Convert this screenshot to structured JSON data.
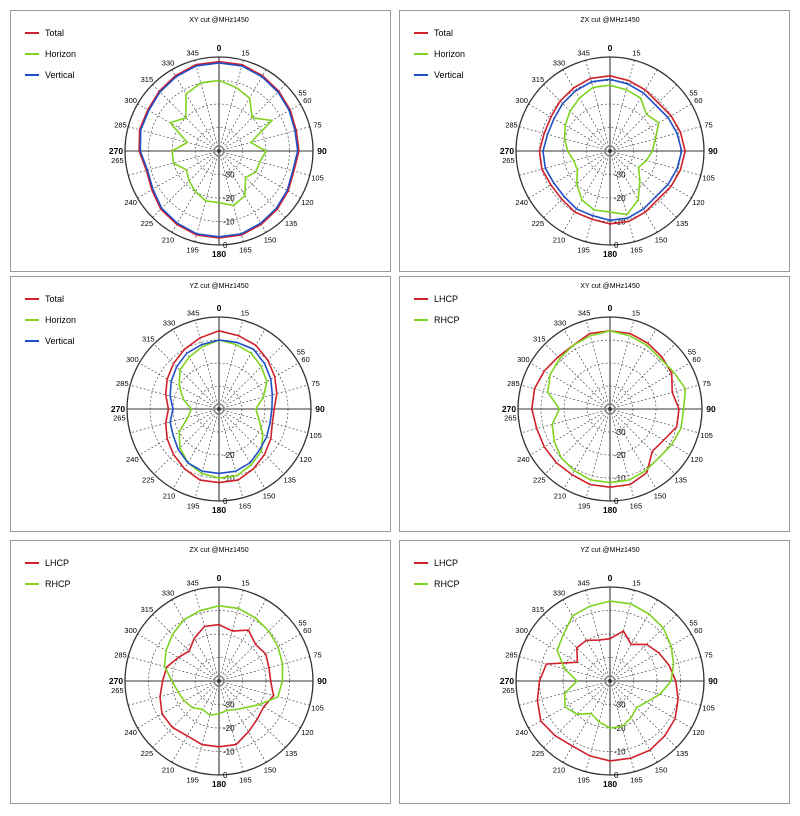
{
  "chart_data": [
    {
      "type": "polar-line",
      "title": "XY cut @MHz1450",
      "angular_ticks": [
        "0",
        "15",
        "30",
        "45",
        "60",
        "75",
        "90",
        "105",
        "120",
        "135",
        "150",
        "165",
        "180",
        "195",
        "210",
        "225",
        "240",
        "255",
        "270",
        "285",
        "300",
        "315",
        "330",
        "345"
      ],
      "angular_labels_shown": [
        "0",
        "15",
        "55",
        "60",
        "75",
        "90",
        "105",
        "120",
        "135",
        "150",
        "165",
        "180",
        "195",
        "210",
        "225",
        "240",
        "265",
        "270",
        "285",
        "300",
        "315",
        "330",
        "345"
      ],
      "radial_labels": [
        "-30",
        "-20",
        "-10",
        "0"
      ],
      "radial_range": [
        -40,
        0
      ],
      "series": [
        {
          "name": "Total",
          "color": "#d0202a",
          "values": [
            -2,
            -2,
            -3,
            -4,
            -5,
            -6,
            -6,
            -7,
            -6,
            -5,
            -4,
            -3,
            -3,
            -3,
            -4,
            -5,
            -7,
            -8,
            -6,
            -5,
            -5,
            -4,
            -3,
            -2
          ]
        },
        {
          "name": "Horizon",
          "color": "#7ed321",
          "values": [
            -10,
            -12,
            -14,
            -20,
            -14,
            -26,
            -20,
            -22,
            -22,
            -24,
            -18,
            -16,
            -18,
            -18,
            -20,
            -22,
            -24,
            -20,
            -20,
            -26,
            -16,
            -20,
            -12,
            -10
          ]
        },
        {
          "name": "Vertical",
          "color": "#2050c8",
          "values": [
            -2.5,
            -2.5,
            -3.5,
            -4.5,
            -5.5,
            -6.5,
            -6.5,
            -7.5,
            -6.5,
            -5.5,
            -4.5,
            -3.5,
            -3.5,
            -3.5,
            -4.5,
            -5.5,
            -7.5,
            -8.5,
            -6.5,
            -5.5,
            -5.5,
            -4.5,
            -3.5,
            -2.5
          ]
        }
      ]
    },
    {
      "type": "polar-line",
      "title": "ZX cut @MHz1450",
      "angular_ticks": [
        "0",
        "15",
        "30",
        "45",
        "60",
        "75",
        "90",
        "105",
        "120",
        "135",
        "150",
        "165",
        "180",
        "195",
        "210",
        "225",
        "240",
        "255",
        "270",
        "285",
        "300",
        "315",
        "330",
        "345"
      ],
      "angular_labels_shown": [
        "0",
        "15",
        "55",
        "60",
        "75",
        "90",
        "105",
        "120",
        "135",
        "150",
        "165",
        "180",
        "195",
        "210",
        "225",
        "240",
        "265",
        "270",
        "285",
        "300",
        "315",
        "330",
        "345"
      ],
      "radial_labels": [
        "-30",
        "-20",
        "-10",
        "0"
      ],
      "radial_range": [
        -40,
        0
      ],
      "series": [
        {
          "name": "Total",
          "color": "#d0202a",
          "values": [
            -8,
            -9,
            -10,
            -11,
            -10,
            -9,
            -8,
            -9,
            -10,
            -11,
            -10,
            -9,
            -9,
            -10,
            -10,
            -11,
            -11,
            -10,
            -10,
            -11,
            -11,
            -10,
            -9,
            -8
          ]
        },
        {
          "name": "Horizon",
          "color": "#7ed321",
          "values": [
            -12,
            -13,
            -14,
            -18,
            -16,
            -20,
            -22,
            -24,
            -26,
            -22,
            -16,
            -12,
            -14,
            -14,
            -16,
            -20,
            -24,
            -24,
            -22,
            -20,
            -18,
            -16,
            -14,
            -12
          ]
        },
        {
          "name": "Vertical",
          "color": "#2050c8",
          "values": [
            -9.5,
            -10.5,
            -11.5,
            -12.5,
            -11.5,
            -10.5,
            -9.5,
            -10.5,
            -11.5,
            -12.5,
            -11.5,
            -10.5,
            -10.5,
            -11.5,
            -11.5,
            -12.5,
            -12.5,
            -11.5,
            -11.5,
            -12.5,
            -12.5,
            -11.5,
            -10.5,
            -9.5
          ]
        }
      ]
    },
    {
      "type": "polar-line",
      "title": "YZ cut @MHz1450",
      "angular_ticks": [
        "0",
        "15",
        "30",
        "45",
        "60",
        "75",
        "90",
        "105",
        "120",
        "135",
        "150",
        "165",
        "180",
        "195",
        "210",
        "225",
        "240",
        "255",
        "270",
        "285",
        "300",
        "315",
        "330",
        "345"
      ],
      "angular_labels_shown": [
        "0",
        "15",
        "55",
        "60",
        "75",
        "90",
        "105",
        "120",
        "135",
        "150",
        "165",
        "180",
        "195",
        "210",
        "225",
        "240",
        "265",
        "270",
        "285",
        "300",
        "315",
        "330",
        "345"
      ],
      "radial_labels": [
        "-20",
        "-10",
        "0"
      ],
      "radial_range": [
        -40,
        0
      ],
      "series": [
        {
          "name": "Total",
          "color": "#d0202a",
          "values": [
            -6,
            -7,
            -8,
            -10,
            -12,
            -14,
            -16,
            -16,
            -14,
            -12,
            -10,
            -8,
            -8,
            -8,
            -10,
            -12,
            -14,
            -16,
            -18,
            -16,
            -14,
            -12,
            -10,
            -8
          ]
        },
        {
          "name": "Horizon",
          "color": "#7ed321",
          "values": [
            -10,
            -11,
            -12,
            -14,
            -16,
            -20,
            -24,
            -22,
            -18,
            -14,
            -12,
            -10,
            -10,
            -11,
            -13,
            -16,
            -20,
            -26,
            -28,
            -24,
            -20,
            -16,
            -14,
            -12
          ]
        },
        {
          "name": "Vertical",
          "color": "#2050c8",
          "values": [
            -10,
            -10,
            -10,
            -12,
            -14,
            -16,
            -17,
            -17,
            -16,
            -15,
            -13,
            -12,
            -12,
            -12,
            -13,
            -15,
            -17,
            -18,
            -20,
            -18,
            -16,
            -14,
            -12,
            -11
          ]
        }
      ]
    },
    {
      "type": "polar-line",
      "title": "XY cut @MHz1450",
      "angular_ticks": [
        "0",
        "15",
        "30",
        "45",
        "60",
        "75",
        "90",
        "105",
        "120",
        "135",
        "150",
        "165",
        "180",
        "195",
        "210",
        "225",
        "240",
        "255",
        "270",
        "285",
        "300",
        "315",
        "330",
        "345"
      ],
      "angular_labels_shown": [
        "0",
        "15",
        "55",
        "60",
        "75",
        "90",
        "105",
        "120",
        "135",
        "150",
        "165",
        "180",
        "195",
        "210",
        "225",
        "240",
        "265",
        "270",
        "285",
        "300",
        "315",
        "330",
        "345"
      ],
      "radial_labels": [
        "-30",
        "-20",
        "-10",
        "0"
      ],
      "radial_range": [
        -40,
        0
      ],
      "series": [
        {
          "name": "LHCP",
          "color": "#d0202a",
          "values": [
            -6,
            -6,
            -7,
            -8,
            -9,
            -12,
            -10,
            -10,
            -13,
            -14,
            -8,
            -6,
            -6,
            -6,
            -7,
            -7,
            -7,
            -7,
            -6,
            -6,
            -7,
            -8,
            -8,
            -6
          ]
        },
        {
          "name": "RHCP",
          "color": "#7ed321",
          "values": [
            -6,
            -7,
            -8,
            -9,
            -8,
            -6,
            -8,
            -8,
            -9,
            -10,
            -9,
            -8,
            -8,
            -8,
            -9,
            -10,
            -12,
            -14,
            -18,
            -12,
            -10,
            -9,
            -8,
            -7
          ]
        }
      ]
    },
    {
      "type": "polar-line",
      "title": "ZX cut @MHz1450",
      "angular_ticks": [
        "0",
        "15",
        "30",
        "45",
        "60",
        "75",
        "90",
        "105",
        "120",
        "135",
        "150",
        "165",
        "180",
        "195",
        "210",
        "225",
        "240",
        "255",
        "270",
        "285",
        "300",
        "315",
        "330",
        "345"
      ],
      "angular_labels_shown": [
        "0",
        "15",
        "55",
        "60",
        "75",
        "90",
        "105",
        "120",
        "135",
        "150",
        "165",
        "180",
        "195",
        "210",
        "225",
        "240",
        "265",
        "270",
        "285",
        "300",
        "315",
        "330",
        "345"
      ],
      "radial_labels": [
        "-30",
        "-20",
        "-10",
        "0"
      ],
      "radial_range": [
        -40,
        0
      ],
      "series": [
        {
          "name": "LHCP",
          "color": "#d0202a",
          "values": [
            -16,
            -18,
            -15,
            -18,
            -17,
            -18,
            -18,
            -16,
            -18,
            -17,
            -15,
            -12,
            -12,
            -12,
            -13,
            -12,
            -12,
            -14,
            -16,
            -17,
            -20,
            -22,
            -19,
            -16
          ]
        },
        {
          "name": "RHCP",
          "color": "#7ed321",
          "values": [
            -8,
            -8,
            -9,
            -10,
            -11,
            -12,
            -13,
            -14,
            -20,
            -24,
            -26,
            -27,
            -26,
            -25,
            -26,
            -24,
            -23,
            -22,
            -20,
            -16,
            -14,
            -12,
            -10,
            -9
          ]
        }
      ]
    },
    {
      "type": "polar-line",
      "title": "YZ cut @MHz1450",
      "angular_ticks": [
        "0",
        "15",
        "30",
        "45",
        "60",
        "75",
        "90",
        "105",
        "120",
        "135",
        "150",
        "165",
        "180",
        "195",
        "210",
        "225",
        "240",
        "255",
        "270",
        "285",
        "300",
        "315",
        "330",
        "345"
      ],
      "angular_labels_shown": [
        "0",
        "15",
        "55",
        "60",
        "75",
        "90",
        "105",
        "120",
        "135",
        "150",
        "165",
        "180",
        "195",
        "210",
        "225",
        "240",
        "265",
        "270",
        "285",
        "300",
        "315",
        "330",
        "345"
      ],
      "radial_labels": [
        "-30",
        "-20",
        "-10",
        "0"
      ],
      "radial_range": [
        -40,
        0
      ],
      "series": [
        {
          "name": "LHCP",
          "color": "#d0202a",
          "values": [
            -22,
            -18,
            -22,
            -18,
            -16,
            -14,
            -12,
            -10,
            -8,
            -7,
            -6,
            -6,
            -6,
            -7,
            -8,
            -7,
            -6,
            -8,
            -10,
            -12,
            -24,
            -20,
            -20,
            -22
          ]
        },
        {
          "name": "RHCP",
          "color": "#7ed321",
          "values": [
            -6,
            -6,
            -7,
            -8,
            -10,
            -12,
            -14,
            -18,
            -22,
            -24,
            -22,
            -20,
            -20,
            -22,
            -24,
            -20,
            -18,
            -20,
            -26,
            -20,
            -14,
            -12,
            -8,
            -7
          ]
        }
      ]
    }
  ]
}
